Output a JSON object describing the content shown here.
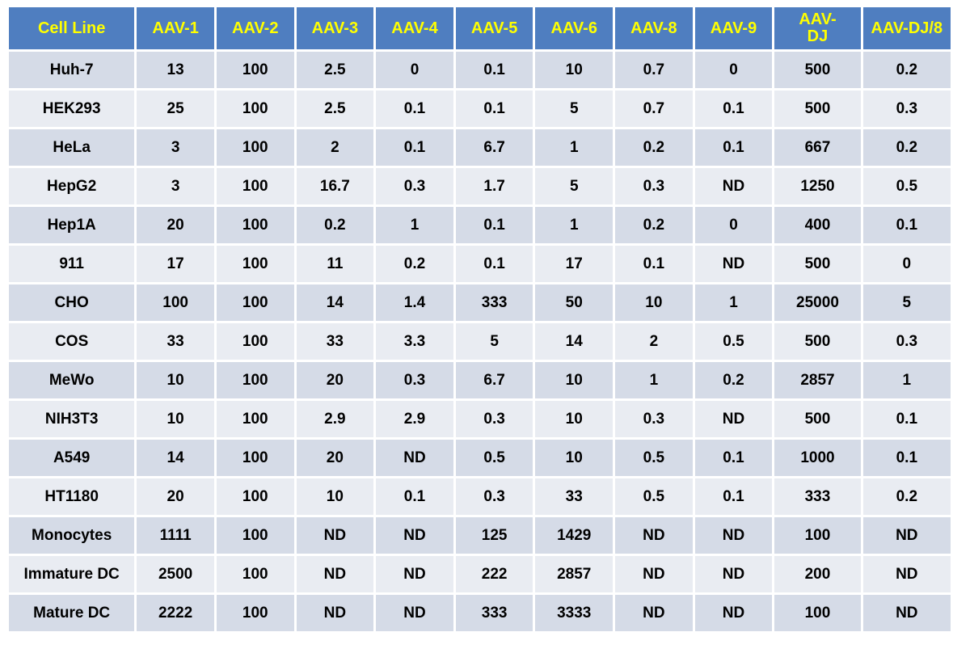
{
  "chart_data": {
    "type": "table",
    "columns": [
      "Cell Line",
      "AAV-1",
      "AAV-2",
      "AAV-3",
      "AAV-4",
      "AAV-5",
      "AAV-6",
      "AAV-8",
      "AAV-9",
      "AAV-DJ",
      "AAV-DJ/8"
    ],
    "rows": [
      [
        "Huh-7",
        "13",
        "100",
        "2.5",
        "0",
        "0.1",
        "10",
        "0.7",
        "0",
        "500",
        "0.2"
      ],
      [
        "HEK293",
        "25",
        "100",
        "2.5",
        "0.1",
        "0.1",
        "5",
        "0.7",
        "0.1",
        "500",
        "0.3"
      ],
      [
        "HeLa",
        "3",
        "100",
        "2",
        "0.1",
        "6.7",
        "1",
        "0.2",
        "0.1",
        "667",
        "0.2"
      ],
      [
        "HepG2",
        "3",
        "100",
        "16.7",
        "0.3",
        "1.7",
        "5",
        "0.3",
        "ND",
        "1250",
        "0.5"
      ],
      [
        "Hep1A",
        "20",
        "100",
        "0.2",
        "1",
        "0.1",
        "1",
        "0.2",
        "0",
        "400",
        "0.1"
      ],
      [
        "911",
        "17",
        "100",
        "11",
        "0.2",
        "0.1",
        "17",
        "0.1",
        "ND",
        "500",
        "0"
      ],
      [
        "CHO",
        "100",
        "100",
        "14",
        "1.4",
        "333",
        "50",
        "10",
        "1",
        "25000",
        "5"
      ],
      [
        "COS",
        "33",
        "100",
        "33",
        "3.3",
        "5",
        "14",
        "2",
        "0.5",
        "500",
        "0.3"
      ],
      [
        "MeWo",
        "10",
        "100",
        "20",
        "0.3",
        "6.7",
        "10",
        "1",
        "0.2",
        "2857",
        "1"
      ],
      [
        "NIH3T3",
        "10",
        "100",
        "2.9",
        "2.9",
        "0.3",
        "10",
        "0.3",
        "ND",
        "500",
        "0.1"
      ],
      [
        "A549",
        "14",
        "100",
        "20",
        "ND",
        "0.5",
        "10",
        "0.5",
        "0.1",
        "1000",
        "0.1"
      ],
      [
        "HT1180",
        "20",
        "100",
        "10",
        "0.1",
        "0.3",
        "33",
        "0.5",
        "0.1",
        "333",
        "0.2"
      ],
      [
        "Monocytes",
        "1111",
        "100",
        "ND",
        "ND",
        "125",
        "1429",
        "ND",
        "ND",
        "100",
        "ND"
      ],
      [
        "Immature DC",
        "2500",
        "100",
        "ND",
        "ND",
        "222",
        "2857",
        "ND",
        "ND",
        "200",
        "ND"
      ],
      [
        "Mature DC",
        "2222",
        "100",
        "ND",
        "ND",
        "333",
        "3333",
        "ND",
        "ND",
        "100",
        "ND"
      ]
    ],
    "colors": {
      "header_bg": "#4f7ec0",
      "header_text": "#ffff00",
      "row_bg_odd": "#d5dbe7",
      "row_bg_even": "#e9ecf2",
      "cell_text": "#000000"
    }
  }
}
